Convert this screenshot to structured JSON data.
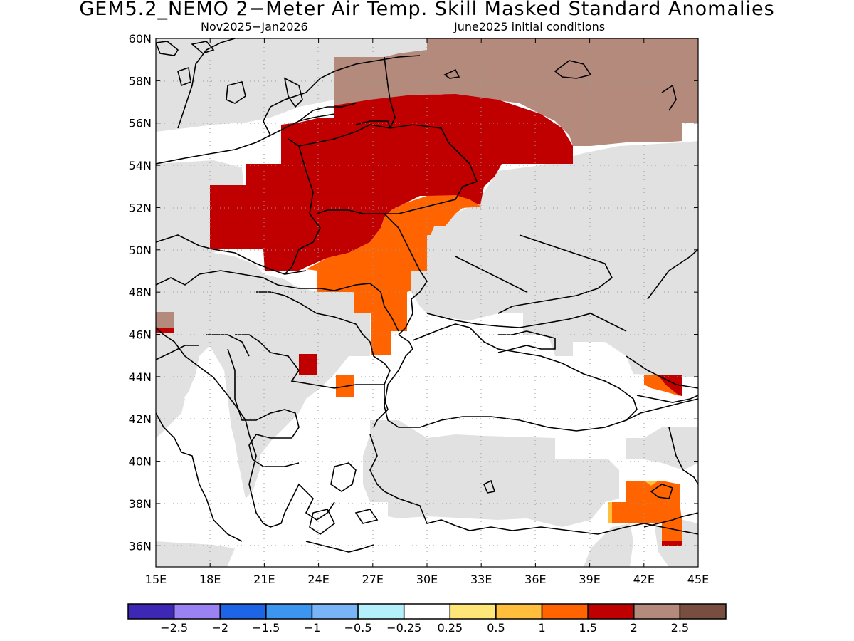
{
  "title": "GEM5.2_NEMO 2−Meter Air Temp. Skill Masked Standard Anomalies",
  "subtitle_left": "Nov2025−Jan2026",
  "subtitle_right": "June2025 initial conditions",
  "map": {
    "lon_range": [
      15,
      45
    ],
    "lat_range": [
      35,
      60
    ],
    "lon_ticks": [
      "15E",
      "18E",
      "21E",
      "24E",
      "27E",
      "30E",
      "33E",
      "36E",
      "39E",
      "42E",
      "45E"
    ],
    "lat_ticks": [
      "36N",
      "38N",
      "40N",
      "42N",
      "44N",
      "46N",
      "48N",
      "50N",
      "52N",
      "54N",
      "56N",
      "58N",
      "60N"
    ],
    "grid": "dotted",
    "land_mask_color": "#e1e1e1",
    "regions": [
      {
        "name": "Russia north",
        "category": "2 to 2.5",
        "color": "#b48a7c"
      },
      {
        "name": "Poland-Belarus-Lithuania",
        "category": "1.5 to 2",
        "color": "#c00000"
      },
      {
        "name": "Ukraine-Moldova west",
        "category": "1 to 1.5",
        "color": "#ff6400"
      },
      {
        "name": "Romania south",
        "category": "1.5 to 2",
        "color": "#c00000"
      },
      {
        "name": "Bulgaria north",
        "category": "1 to 1.5",
        "color": "#ff6400"
      },
      {
        "name": "Caucasus",
        "category": "1.5 to 2",
        "color": "#c00000"
      },
      {
        "name": "East Turkey",
        "category": "1 to 1.5",
        "color": "#ff6400"
      }
    ]
  },
  "colorbar": {
    "labels": [
      "−2.5",
      "−2",
      "−1.5",
      "−1",
      "−0.5",
      "−0.25",
      "0.25",
      "0.5",
      "1",
      "1.5",
      "2",
      "2.5"
    ],
    "colors": [
      "#3c28b4",
      "#9a82f2",
      "#1e64e6",
      "#3c96f0",
      "#78b4f6",
      "#b4f0fa",
      "#ffffff",
      "#ffe678",
      "#ffbe3c",
      "#ff6400",
      "#c00000",
      "#b48a7c",
      "#784e41"
    ]
  }
}
